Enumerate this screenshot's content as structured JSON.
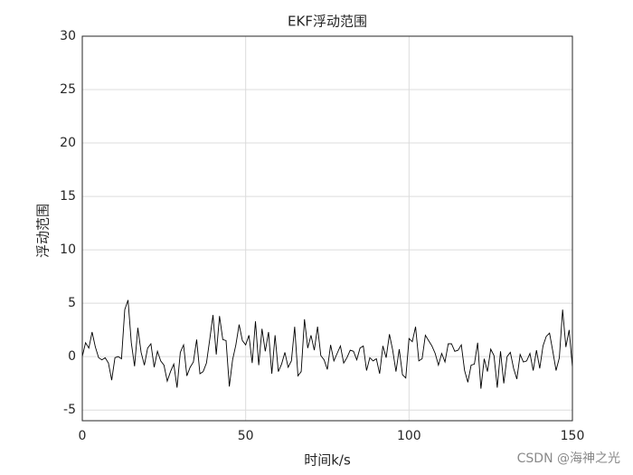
{
  "chart_data": {
    "type": "line",
    "title": "EKF浮动范围",
    "x_label": "时间k/s",
    "y_label": "浮动范围",
    "watermark": "CSDN @海神之光",
    "x": [
      0,
      1,
      2,
      3,
      4,
      5,
      6,
      7,
      8,
      9,
      10,
      11,
      12,
      13,
      14,
      15,
      16,
      17,
      18,
      19,
      20,
      21,
      22,
      23,
      24,
      25,
      26,
      27,
      28,
      29,
      30,
      31,
      32,
      33,
      34,
      35,
      36,
      37,
      38,
      39,
      40,
      41,
      42,
      43,
      44,
      45,
      46,
      47,
      48,
      49,
      50,
      51,
      52,
      53,
      54,
      55,
      56,
      57,
      58,
      59,
      60,
      61,
      62,
      63,
      64,
      65,
      66,
      67,
      68,
      69,
      70,
      71,
      72,
      73,
      74,
      75,
      76,
      77,
      78,
      79,
      80,
      81,
      82,
      83,
      84,
      85,
      86,
      87,
      88,
      89,
      90,
      91,
      92,
      93,
      94,
      95,
      96,
      97,
      98,
      99,
      100,
      101,
      102,
      103,
      104,
      105,
      106,
      107,
      108,
      109,
      110,
      111,
      112,
      113,
      114,
      115,
      116,
      117,
      118,
      119,
      120,
      121,
      122,
      123,
      124,
      125,
      126,
      127,
      128,
      129,
      130,
      131,
      132,
      133,
      134,
      135,
      136,
      137,
      138,
      139,
      140,
      141,
      142,
      143,
      144,
      145,
      146,
      147,
      148,
      149,
      150
    ],
    "values": [
      0,
      1.3,
      0.8,
      2.3,
      0.9,
      -0.1,
      -0.3,
      -0.1,
      -0.6,
      -2.2,
      -0.1,
      0.0,
      -0.2,
      4.4,
      5.3,
      1.3,
      -0.9,
      2.7,
      0.4,
      -0.8,
      0.8,
      1.2,
      -1.0,
      0.5,
      -0.4,
      -0.8,
      -2.3,
      -1.4,
      -0.7,
      -2.9,
      0.4,
      1.1,
      -1.8,
      -1.0,
      -0.5,
      1.6,
      -1.6,
      -1.4,
      -0.6,
      1.6,
      3.9,
      0.2,
      3.8,
      1.6,
      1.5,
      -2.8,
      -0.3,
      1.1,
      3.0,
      1.5,
      1.1,
      2.0,
      -0.6,
      3.3,
      -0.8,
      2.6,
      0.5,
      2.3,
      -1.6,
      2.0,
      -1.4,
      -0.7,
      0.4,
      -1.0,
      -0.4,
      2.8,
      -1.8,
      -1.4,
      3.5,
      0.8,
      2.0,
      0.6,
      2.8,
      0.1,
      -0.3,
      -1.2,
      1.1,
      -0.4,
      0.3,
      1.0,
      -0.6,
      -0.1,
      0.6,
      0.5,
      -0.3,
      0.8,
      1.0,
      -1.3,
      -0.1,
      -0.4,
      -0.2,
      -1.6,
      1.0,
      -0.1,
      2.1,
      0.6,
      -1.4,
      0.7,
      -1.7,
      -2.0,
      1.7,
      1.4,
      2.8,
      -0.4,
      -0.2,
      2.0,
      1.5,
      1.0,
      0.3,
      -0.8,
      0.3,
      -0.5,
      1.2,
      1.2,
      0.5,
      0.6,
      1.1,
      -1.3,
      -2.4,
      -0.8,
      -0.7,
      1.3,
      -3.0,
      -0.2,
      -1.4,
      0.7,
      0.1,
      -2.9,
      0.5,
      -2.5,
      0.0,
      0.4,
      -1.1,
      -2.1,
      0.2,
      -0.5,
      -0.4,
      0.3,
      -1.3,
      0.6,
      -1.1,
      1.0,
      1.9,
      2.2,
      0.5,
      -1.3,
      -0.1,
      4.4,
      0.9,
      2.5,
      -1.0
    ],
    "color": "#000000",
    "xlim": [
      0,
      150
    ],
    "xticks": [
      0,
      50,
      100,
      150
    ],
    "ylim": [
      -6,
      30
    ],
    "yticks": [
      -5,
      0,
      5,
      10,
      15,
      20,
      25,
      30
    ],
    "grid": true
  }
}
